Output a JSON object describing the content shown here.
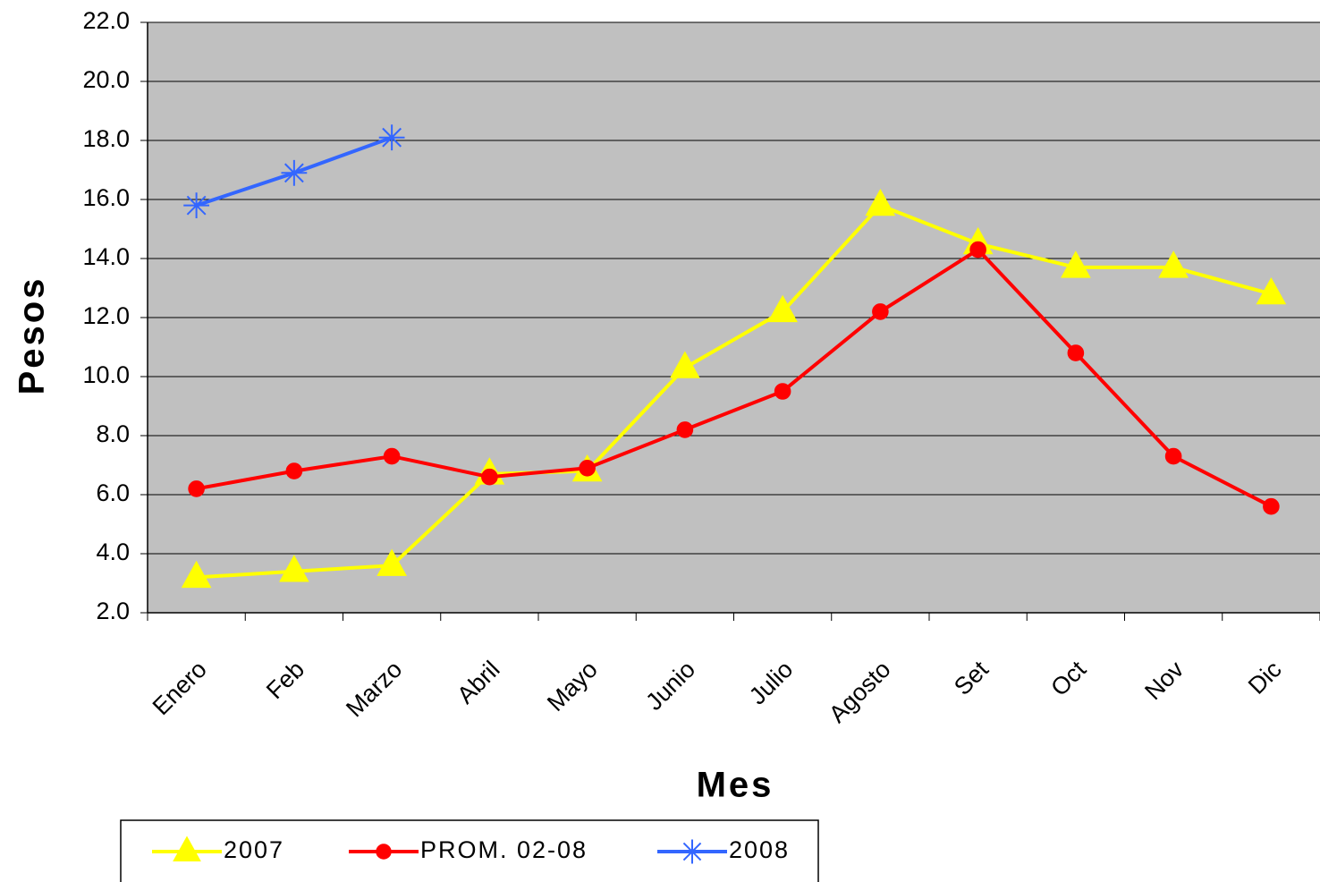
{
  "chart_data": {
    "type": "line",
    "xlabel": "Mes",
    "ylabel": "Pesos",
    "categories": [
      "Enero",
      "Feb",
      "Marzo",
      "Abril",
      "Mayo",
      "Junio",
      "Julio",
      "Agosto",
      "Set",
      "Oct",
      "Nov",
      "Dic"
    ],
    "series": [
      {
        "name": "2007",
        "color": "#ffff00",
        "marker": "triangle",
        "values": [
          3.2,
          3.4,
          3.6,
          6.7,
          6.8,
          10.3,
          12.2,
          15.8,
          14.5,
          13.7,
          13.7,
          12.8
        ]
      },
      {
        "name": "PROM. 02-08",
        "color": "#ff0000",
        "marker": "circle",
        "values": [
          6.2,
          6.8,
          7.3,
          6.6,
          6.9,
          8.2,
          9.5,
          12.2,
          14.3,
          10.8,
          7.3,
          5.6
        ]
      },
      {
        "name": "2008",
        "color": "#3366ff",
        "marker": "asterisk",
        "values": [
          15.8,
          16.9,
          18.1,
          null,
          null,
          null,
          null,
          null,
          null,
          null,
          null,
          null
        ]
      }
    ],
    "ylim": [
      2,
      22
    ],
    "yticks": [
      {
        "value": 2,
        "label": "2.0"
      },
      {
        "value": 4,
        "label": "4.0"
      },
      {
        "value": 6,
        "label": "6.0"
      },
      {
        "value": 8,
        "label": "8.0"
      },
      {
        "value": 10,
        "label": "10.0"
      },
      {
        "value": 12,
        "label": "12.0"
      },
      {
        "value": 14,
        "label": "14.0"
      },
      {
        "value": 16,
        "label": "16.0"
      },
      {
        "value": 18,
        "label": "18.0"
      },
      {
        "value": 20,
        "label": "20.0"
      },
      {
        "value": 22,
        "label": "22.0"
      }
    ],
    "grid": true,
    "plot_background": "#c0c0c0",
    "legend": "bottom"
  }
}
